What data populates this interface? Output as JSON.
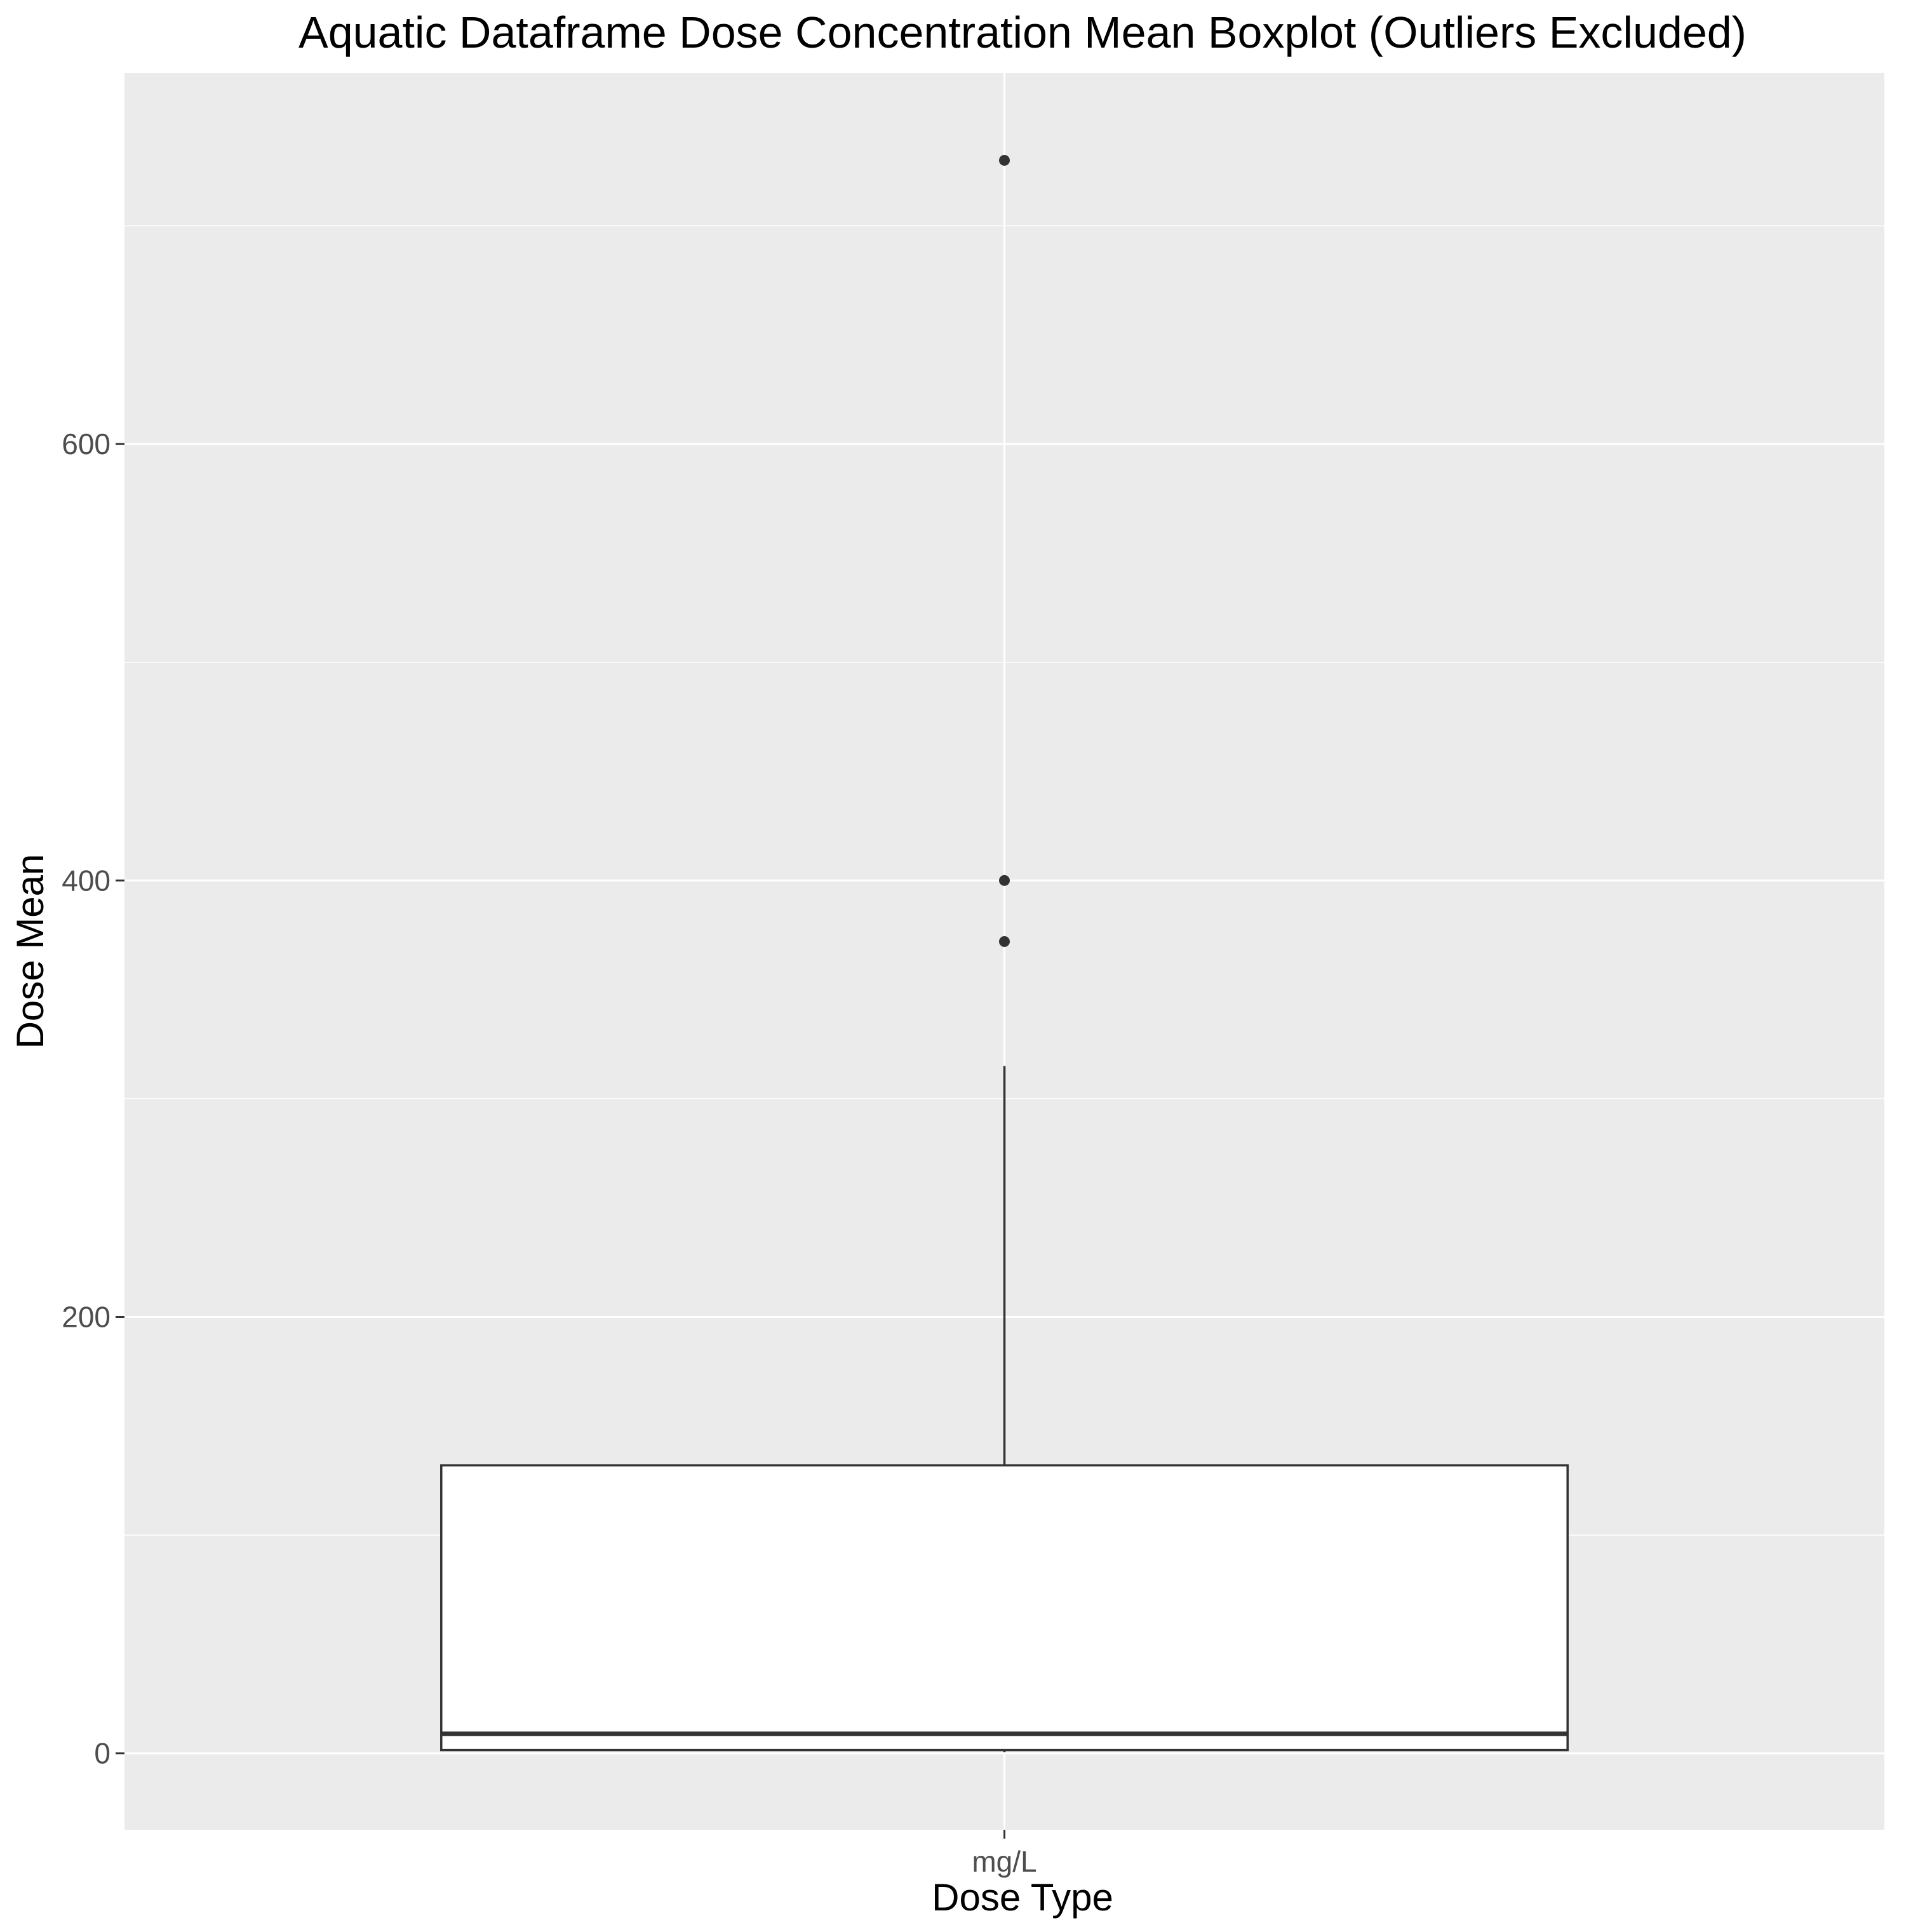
{
  "chart_data": {
    "type": "box",
    "title": "Aquatic Dataframe Dose Concentration Mean Boxplot (Outliers Excluded)",
    "xlabel": "Dose Type",
    "ylabel": "Dose Mean",
    "categories": [
      "mg/L"
    ],
    "ylim": [
      -35,
      770
    ],
    "y_ticks": [
      0,
      200,
      400,
      600
    ],
    "y_tick_labels": [
      "0",
      "200",
      "400",
      "600"
    ],
    "grid": true,
    "boxes": [
      {
        "category": "mg/L",
        "min": 0.5,
        "q1": 1.5,
        "median": 9,
        "q3": 132,
        "max": 315,
        "outliers": [
          372,
          400,
          730
        ]
      }
    ],
    "colors": {
      "panel_background": "#ebebeb",
      "grid_major": "#ffffff",
      "box_fill": "#ffffff",
      "box_stroke": "#333333",
      "tick_text": "#4d4d4d",
      "tick_mark": "#333333"
    }
  }
}
